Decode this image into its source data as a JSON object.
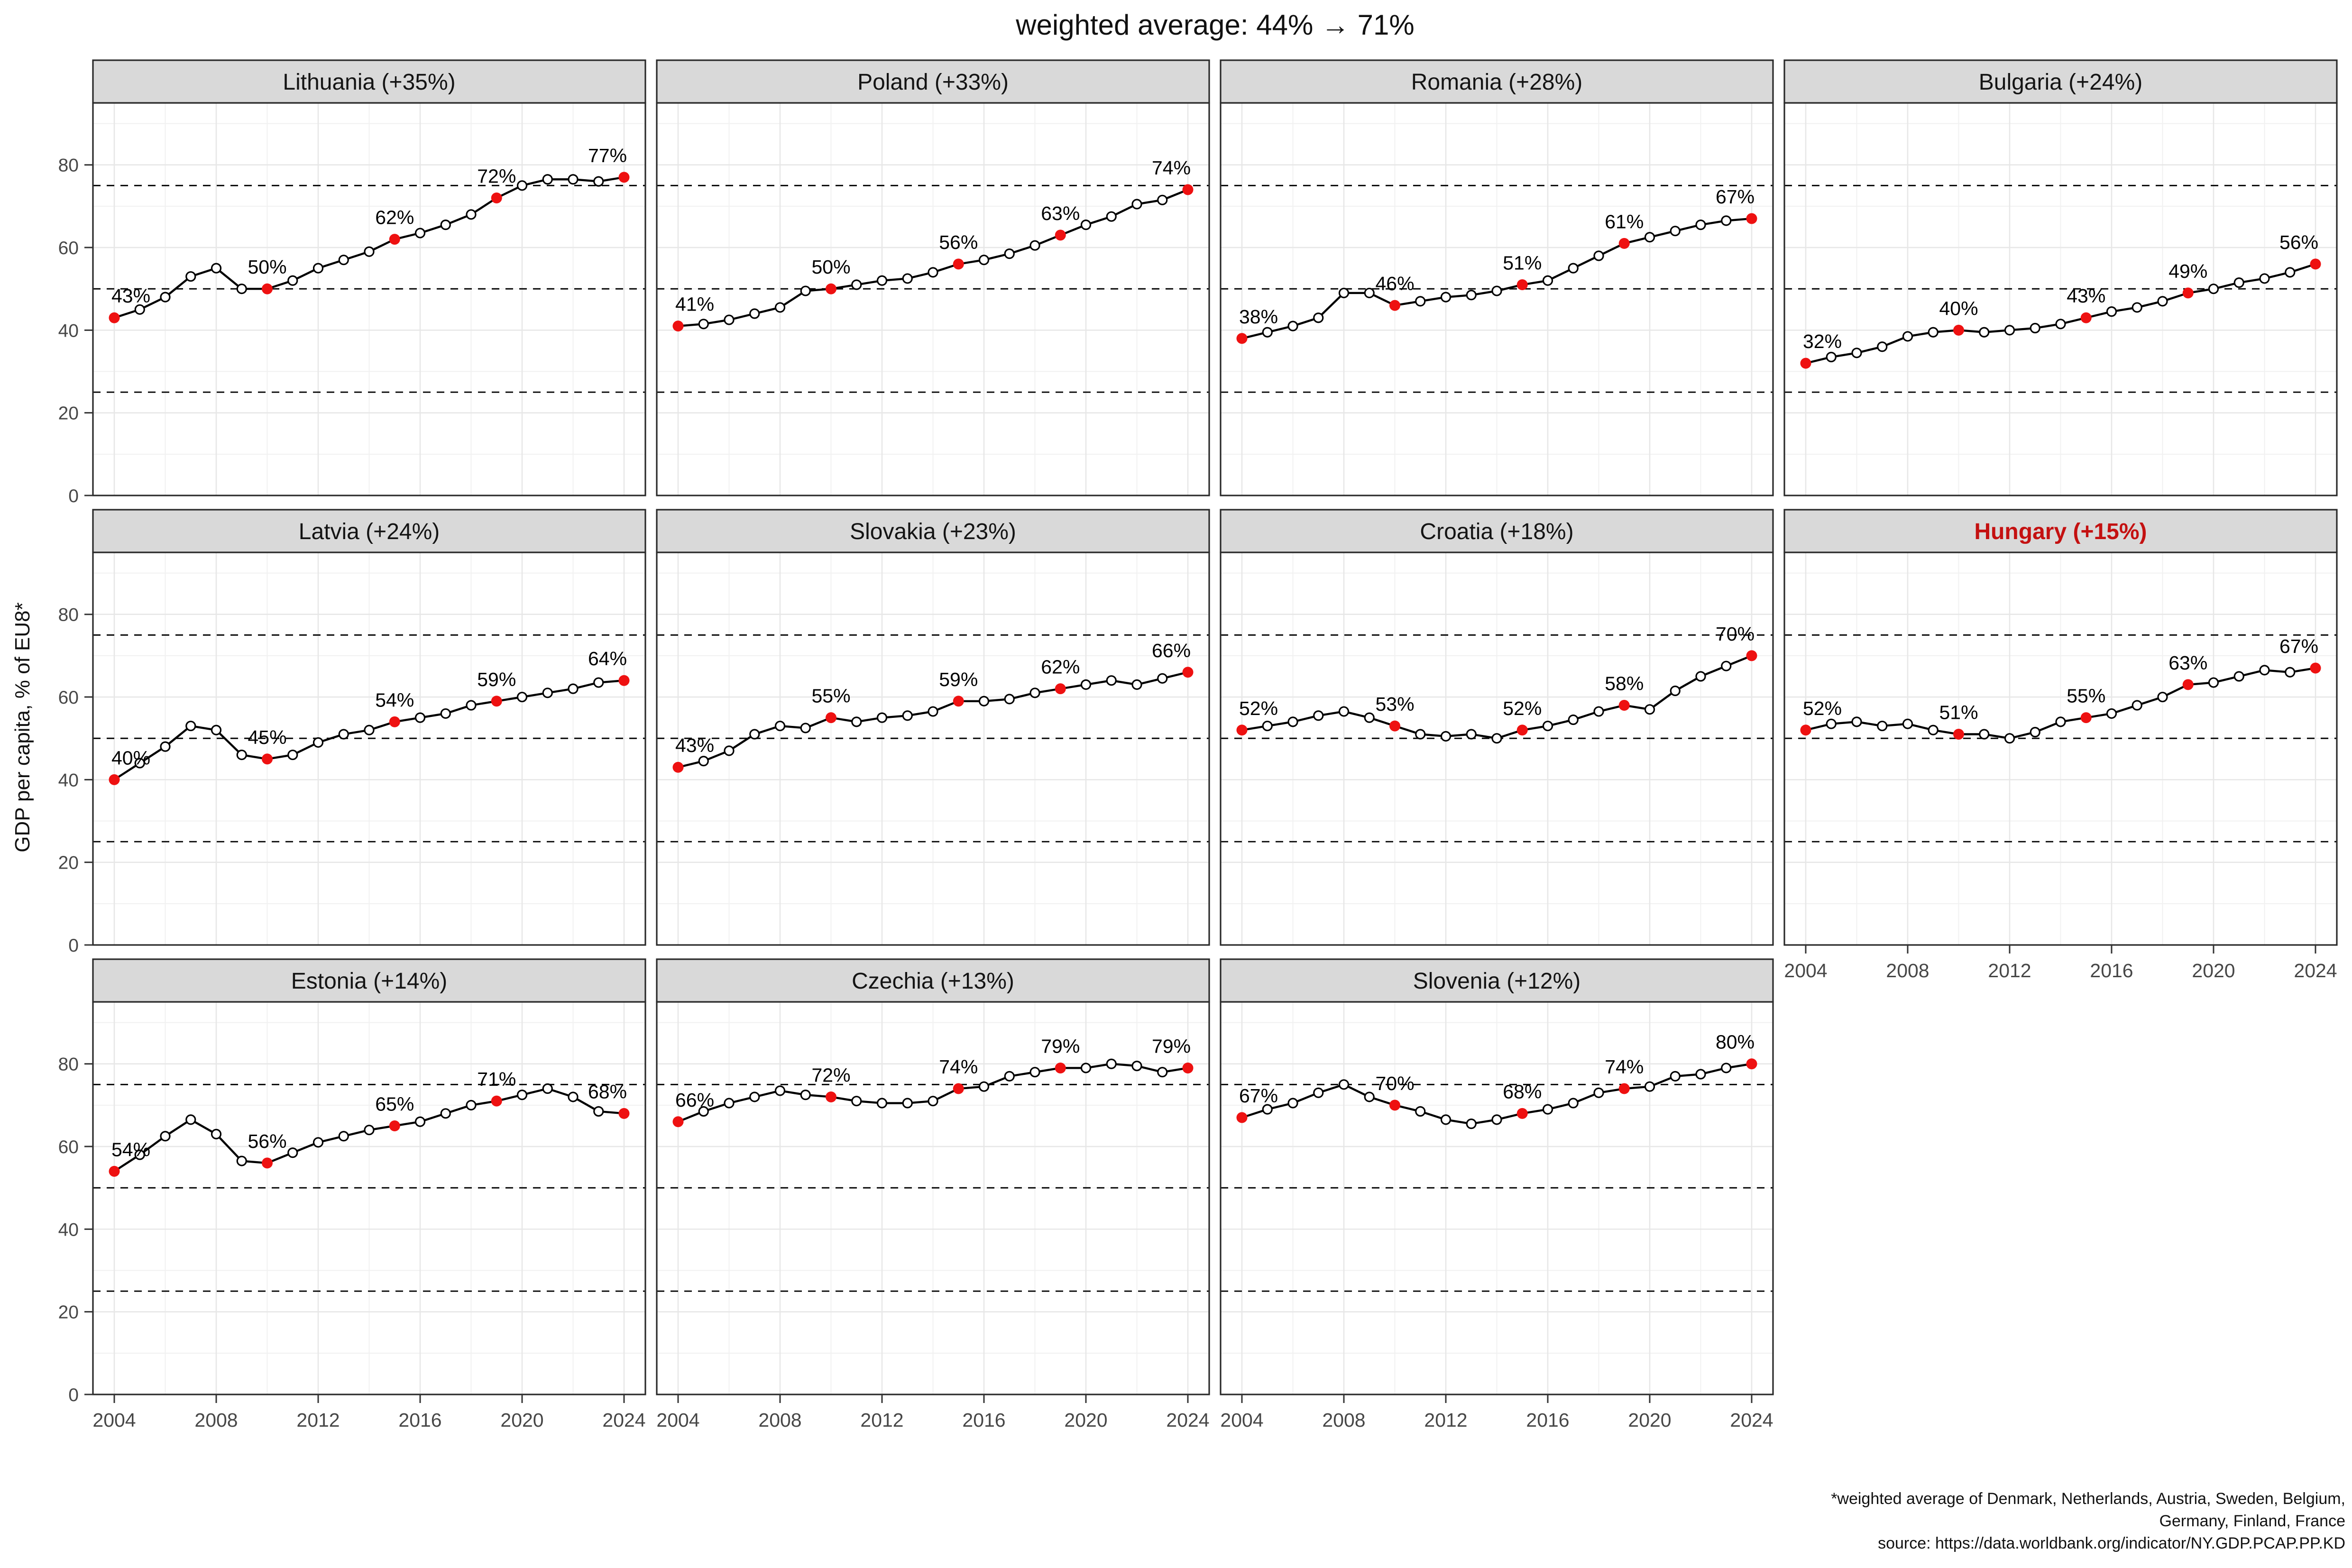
{
  "title": "weighted average: 44% → 71%",
  "y_axis_title": "GDP per capita, % of EU8*",
  "footnote": {
    "line1": "*weighted average of Denmark, Netherlands, Austria, Sweden, Belgium,",
    "line2": "Germany, Finland, France",
    "line3": "source: https://data.worldbank.org/indicator/NY.GDP.PCAP.PP.KD"
  },
  "colors": {
    "highlight_red": "#ee1111",
    "hungary_title_red": "#c41111",
    "strip_bg": "#d9d9d9",
    "strip_text": "#141414",
    "panel_border": "#2a2a2a",
    "grid_major": "#e7e7e7",
    "grid_minor": "#f1f1f1",
    "axis_text": "#474747",
    "line": "#000000",
    "ref_line": "#000000"
  },
  "chart_data": {
    "type": "line",
    "title": "weighted average: 44% → 71%",
    "ylabel": "GDP per capita, % of EU8*",
    "xlabel": "",
    "x": [
      2004,
      2005,
      2006,
      2007,
      2008,
      2009,
      2010,
      2011,
      2012,
      2013,
      2014,
      2015,
      2016,
      2017,
      2018,
      2019,
      2020,
      2021,
      2022,
      2023,
      2024
    ],
    "x_ticks": [
      2004,
      2008,
      2012,
      2016,
      2020,
      2024
    ],
    "x_minor_ticks": [
      2006,
      2010,
      2014,
      2018,
      2022
    ],
    "y_ticks": [
      0,
      20,
      40,
      60,
      80
    ],
    "y_minor_ticks": [
      10,
      30,
      50,
      70,
      90
    ],
    "ylim": [
      0,
      95
    ],
    "xlim": [
      2003.2,
      2024.8
    ],
    "grid": "on",
    "legend": "none",
    "reference_lines_dashed": [
      25,
      50,
      75
    ],
    "highlight_years": [
      2004,
      2010,
      2015,
      2019,
      2024
    ],
    "facets": [
      {
        "title": "Lithuania (+35%)",
        "highlighted": false,
        "values": [
          43,
          45,
          48,
          53,
          55,
          50,
          50,
          52,
          55,
          57,
          59,
          62,
          63.5,
          65.5,
          68,
          72,
          75,
          76.5,
          76.5,
          76,
          77
        ],
        "highlight_labels": [
          "43%",
          "50%",
          "62%",
          "72%",
          "77%"
        ]
      },
      {
        "title": "Poland (+33%)",
        "highlighted": false,
        "values": [
          41,
          41.5,
          42.5,
          44,
          45.5,
          49.5,
          50,
          51,
          52,
          52.5,
          54,
          56,
          57,
          58.5,
          60.5,
          63,
          65.5,
          67.5,
          70.5,
          71.5,
          74
        ],
        "highlight_labels": [
          "41%",
          "50%",
          "56%",
          "63%",
          "74%"
        ]
      },
      {
        "title": "Romania (+28%)",
        "highlighted": false,
        "values": [
          38,
          39.5,
          41,
          43,
          49,
          49,
          46,
          47,
          48,
          48.5,
          49.5,
          51,
          52,
          55,
          58,
          61,
          62.5,
          64,
          65.5,
          66.5,
          67
        ],
        "highlight_labels": [
          "38%",
          "46%",
          "51%",
          "61%",
          "67%"
        ]
      },
      {
        "title": "Bulgaria (+24%)",
        "highlighted": false,
        "values": [
          32,
          33.5,
          34.5,
          36,
          38.5,
          39.5,
          40,
          39.5,
          40,
          40.5,
          41.5,
          43,
          44.5,
          45.5,
          47,
          49,
          50,
          51.5,
          52.5,
          54,
          56
        ],
        "highlight_labels": [
          "32%",
          "40%",
          "43%",
          "49%",
          "56%"
        ]
      },
      {
        "title": "Latvia (+24%)",
        "highlighted": false,
        "values": [
          40,
          44,
          48,
          53,
          52,
          46,
          45,
          46,
          49,
          51,
          52,
          54,
          55,
          56,
          58,
          59,
          60,
          61,
          62,
          63.5,
          64
        ],
        "highlight_labels": [
          "40%",
          "45%",
          "54%",
          "59%",
          "64%"
        ]
      },
      {
        "title": "Slovakia (+23%)",
        "highlighted": false,
        "values": [
          43,
          44.5,
          47,
          51,
          53,
          52.5,
          55,
          54,
          55,
          55.5,
          56.5,
          59,
          59,
          59.5,
          61,
          62,
          63,
          64,
          63,
          64.5,
          66
        ],
        "highlight_labels": [
          "43%",
          "55%",
          "59%",
          "62%",
          "66%"
        ]
      },
      {
        "title": "Croatia (+18%)",
        "highlighted": false,
        "values": [
          52,
          53,
          54,
          55.5,
          56.5,
          55,
          53,
          51,
          50.5,
          51,
          50,
          52,
          53,
          54.5,
          56.5,
          58,
          57,
          61.5,
          65,
          67.5,
          70
        ],
        "highlight_labels": [
          "52%",
          "53%",
          "52%",
          "58%",
          "70%"
        ]
      },
      {
        "title": "Hungary (+15%)",
        "highlighted": true,
        "values": [
          52,
          53.5,
          54,
          53,
          53.5,
          52,
          51,
          51,
          50,
          51.5,
          54,
          55,
          56,
          58,
          60,
          63,
          63.5,
          65,
          66.5,
          66,
          67
        ],
        "highlight_labels": [
          "52%",
          "51%",
          "55%",
          "63%",
          "67%"
        ]
      },
      {
        "title": "Estonia (+14%)",
        "highlighted": false,
        "values": [
          54,
          58,
          62.5,
          66.5,
          63,
          56.5,
          56,
          58.5,
          61,
          62.5,
          64,
          65,
          66,
          68,
          70,
          71,
          72.5,
          74,
          72,
          68.5,
          68
        ],
        "highlight_labels": [
          "54%",
          "56%",
          "65%",
          "71%",
          "68%"
        ]
      },
      {
        "title": "Czechia (+13%)",
        "highlighted": false,
        "values": [
          66,
          68.5,
          70.5,
          72,
          73.5,
          72.5,
          72,
          71,
          70.5,
          70.5,
          71,
          74,
          74.5,
          77,
          78,
          79,
          79,
          80,
          79.5,
          78,
          79
        ],
        "highlight_labels": [
          "66%",
          "72%",
          "74%",
          "79%",
          "79%"
        ]
      },
      {
        "title": "Slovenia (+12%)",
        "highlighted": false,
        "values": [
          67,
          69,
          70.5,
          73,
          75,
          72,
          70,
          68.5,
          66.5,
          65.5,
          66.5,
          68,
          69,
          70.5,
          73,
          74,
          74.5,
          77,
          77.5,
          79,
          80
        ],
        "highlight_labels": [
          "67%",
          "70%",
          "68%",
          "74%",
          "80%"
        ]
      }
    ]
  }
}
